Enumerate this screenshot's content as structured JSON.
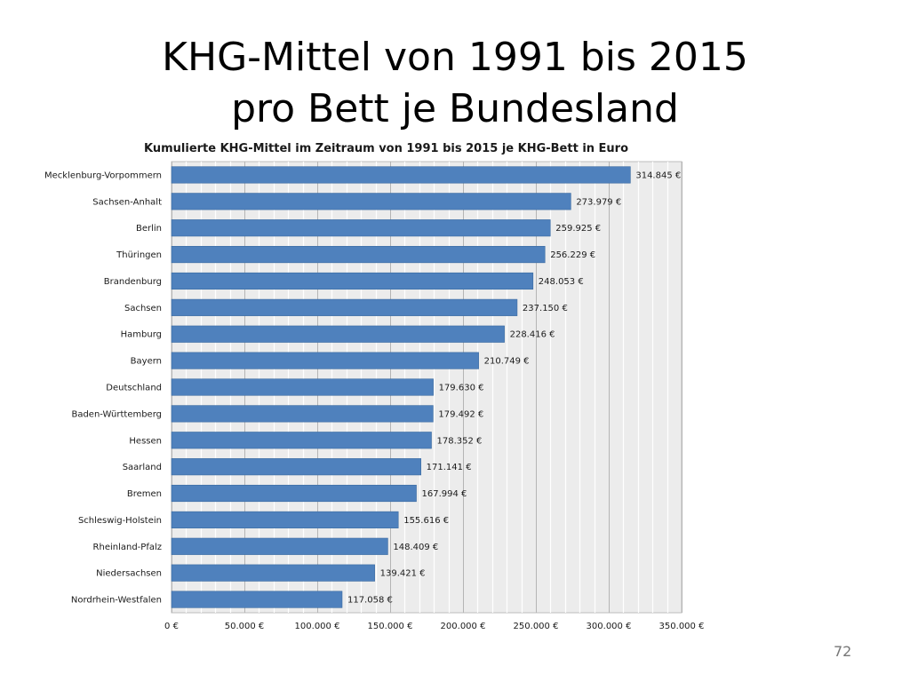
{
  "slide": {
    "title_line1": "KHG-Mittel von 1991 bis 2015",
    "title_line2": "pro Bett je Bundesland",
    "page_number": "72"
  },
  "chart_data": {
    "type": "bar",
    "orientation": "horizontal",
    "title": "Kumulierte KHG-Mittel im Zeitraum von 1991 bis 2015 je KHG-Bett in Euro",
    "categories": [
      "Mecklenburg-Vorpommern",
      "Sachsen-Anhalt",
      "Berlin",
      "Thüringen",
      "Brandenburg",
      "Sachsen",
      "Hamburg",
      "Bayern",
      "Deutschland",
      "Baden-Württemberg",
      "Hessen",
      "Saarland",
      "Bremen",
      "Schleswig-Holstein",
      "Rheinland-Pfalz",
      "Niedersachsen",
      "Nordrhein-Westfalen"
    ],
    "values": [
      314845,
      273979,
      259925,
      256229,
      248053,
      237150,
      228416,
      210749,
      179630,
      179492,
      178352,
      171141,
      167994,
      155616,
      148409,
      139421,
      117058
    ],
    "value_labels": [
      "314.845 €",
      "273.979 €",
      "259.925 €",
      "256.229 €",
      "248.053 €",
      "237.150 €",
      "228.416 €",
      "210.749 €",
      "179.630 €",
      "179.492 €",
      "178.352 €",
      "171.141 €",
      "167.994 €",
      "155.616 €",
      "148.409 €",
      "139.421 €",
      "117.058 €"
    ],
    "xlim": [
      0,
      350000
    ],
    "x_ticks": [
      0,
      50000,
      100000,
      150000,
      200000,
      250000,
      300000,
      350000
    ],
    "x_tick_labels": [
      "0 €",
      "50.000 €",
      "100.000 €",
      "150.000 €",
      "200.000 €",
      "250.000 €",
      "300.000 €",
      "350.000 €"
    ],
    "grid": true,
    "bar_color": "#4f81bd",
    "plot_background": "#ececec"
  }
}
